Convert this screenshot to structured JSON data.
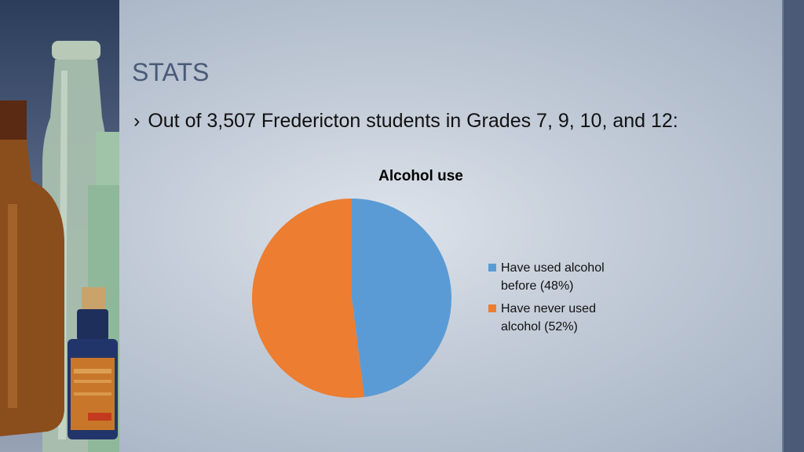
{
  "slide": {
    "title": "STATS",
    "bullet_marker": "›",
    "bullet_text": "Out of 3,507 Fredericton students in Grades 7, 9, 10, and 12:"
  },
  "colors": {
    "series_used": "#5b9bd5",
    "series_never": "#ed7d31",
    "title": "#4a5a78"
  },
  "chart_data": {
    "type": "pie",
    "title": "Alcohol use",
    "categories": [
      "Have used alcohol before (48%)",
      "Have never used alcohol (52%)"
    ],
    "values": [
      48,
      52
    ],
    "legend_position": "right"
  }
}
